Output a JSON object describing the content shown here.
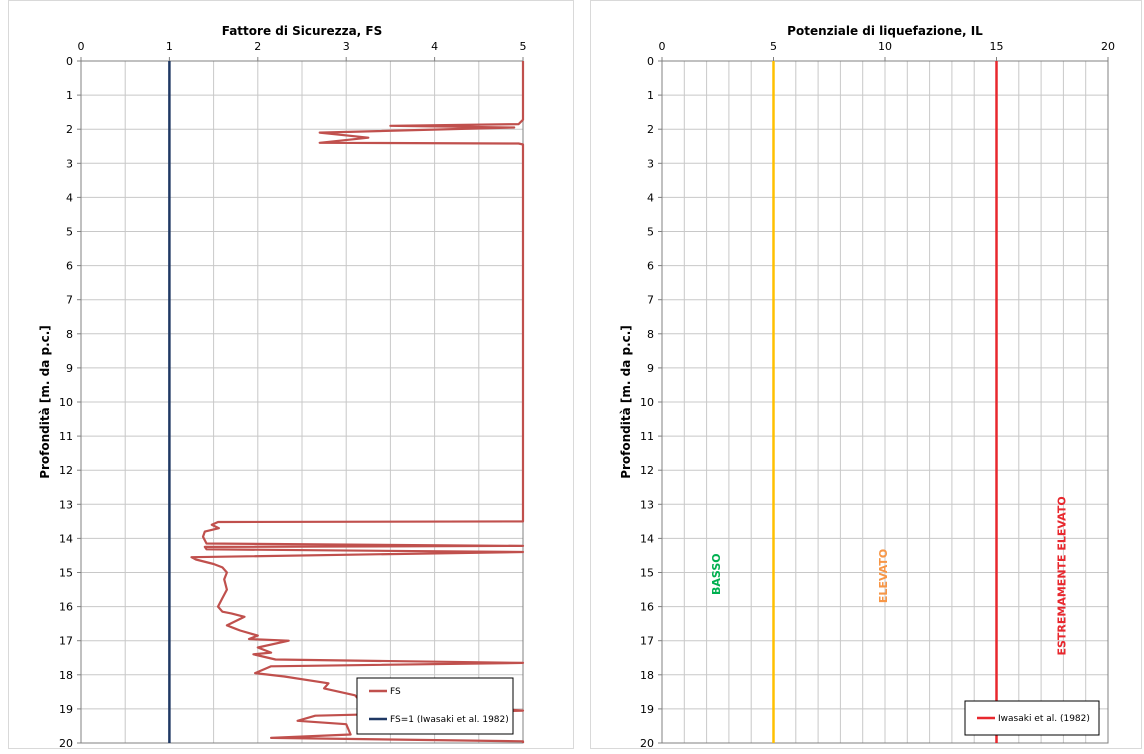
{
  "colors": {
    "fs_curve": "#c0504d",
    "fs1_line": "#1f3864",
    "basso": "#00b050",
    "elevato": "#ffc000",
    "elevato_text": "#f79646",
    "estremamente": "#e8282e"
  },
  "chart_data": [
    {
      "type": "line",
      "title": "Fattore di Sicurezza, FS",
      "xlabel": "Fattore di Sicurezza, FS",
      "ylabel": "Profondità [m. da p.c.]",
      "xlim": [
        0,
        5
      ],
      "ylim": [
        0,
        20
      ],
      "y_inverted": true,
      "x_axis_position": "top",
      "grid": true,
      "x_ticks": [
        "0",
        "1",
        "2",
        "3",
        "4",
        "5"
      ],
      "y_ticks": [
        "0",
        "1",
        "2",
        "3",
        "4",
        "5",
        "6",
        "7",
        "8",
        "9",
        "10",
        "11",
        "12",
        "13",
        "14",
        "15",
        "16",
        "17",
        "18",
        "19",
        "20"
      ],
      "legend_position": "bottom-right",
      "legend": [
        "FS",
        "FS=1 (Iwasaki et al. 1982)"
      ],
      "series": [
        {
          "name": "FS",
          "x": [
            5,
            5,
            5,
            4.95,
            3.5,
            4.9,
            2.7,
            3.25,
            2.7,
            4.95,
            5,
            5,
            1.55,
            1.48,
            1.56,
            1.4,
            1.38,
            1.42,
            5,
            1.4,
            1.42,
            5,
            1.25,
            1.3,
            1.5,
            1.6,
            1.65,
            1.62,
            1.65,
            1.6,
            1.55,
            1.6,
            1.7,
            1.85,
            1.65,
            1.75,
            1.8,
            2.0,
            1.9,
            2.35,
            2.0,
            2.15,
            1.95,
            2.2,
            5,
            2.15,
            1.97,
            2.3,
            2.8,
            2.75,
            3.1,
            3.15,
            5,
            2.65,
            2.45,
            3.0,
            3.05,
            2.15,
            5,
            5
          ],
          "y": [
            0,
            1.7,
            1.72,
            1.85,
            1.9,
            1.95,
            2.1,
            2.25,
            2.4,
            2.42,
            2.45,
            13.5,
            13.52,
            13.6,
            13.7,
            13.8,
            13.95,
            14.15,
            14.22,
            14.25,
            14.32,
            14.4,
            14.55,
            14.62,
            14.75,
            14.85,
            15.0,
            15.2,
            15.5,
            15.75,
            16.0,
            16.15,
            16.2,
            16.3,
            16.55,
            16.65,
            16.7,
            16.85,
            16.95,
            17.0,
            17.2,
            17.35,
            17.4,
            17.55,
            17.65,
            17.75,
            17.95,
            18.05,
            18.25,
            18.4,
            18.6,
            18.75,
            19.05,
            19.2,
            19.35,
            19.45,
            19.75,
            19.85,
            19.95,
            20
          ]
        },
        {
          "name": "FS=1 (Iwasaki et al. 1982)",
          "x": [
            1,
            1
          ],
          "y": [
            0,
            20
          ]
        }
      ]
    },
    {
      "type": "line",
      "title": "Potenziale di liquefazione, IL",
      "xlabel": "Potenziale di liquefazione, IL",
      "ylabel": "Profondità [m. da p.c.]",
      "xlim": [
        0,
        20
      ],
      "ylim": [
        0,
        20
      ],
      "y_inverted": true,
      "x_axis_position": "top",
      "grid": true,
      "x_ticks": [
        "0",
        "5",
        "10",
        "15",
        "20"
      ],
      "y_ticks": [
        "0",
        "1",
        "2",
        "3",
        "4",
        "5",
        "6",
        "7",
        "8",
        "9",
        "10",
        "11",
        "12",
        "13",
        "14",
        "15",
        "16",
        "17",
        "18",
        "19",
        "20"
      ],
      "legend_position": "bottom-right",
      "legend": [
        "Iwasaki et al. (1982)"
      ],
      "series": [
        {
          "x": [
            5,
            5
          ],
          "y": [
            0,
            20
          ]
        },
        {
          "x": [
            15,
            15
          ],
          "y": [
            0,
            20
          ]
        },
        {
          "name": "Iwasaki et al. (1982)",
          "x": [
            0,
            0
          ],
          "y": [
            0,
            20
          ]
        }
      ],
      "zone_labels": [
        {
          "text": "BASSO",
          "x": 2.6,
          "y": 15.05
        },
        {
          "text": "ELEVATO",
          "x": 10.1,
          "y": 15.1
        },
        {
          "text": "ESTREMAMENTE ELEVATO",
          "x": 18.1,
          "y": 15.1
        }
      ]
    }
  ]
}
